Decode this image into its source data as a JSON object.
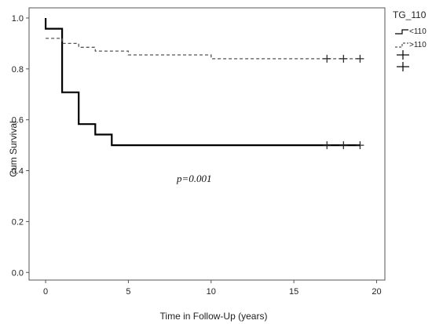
{
  "chart_data": {
    "type": "line",
    "subtype": "kaplan-meier",
    "title": "",
    "xlabel": "Time in Follow-Up (years)",
    "ylabel": "Cum Survival",
    "xlim": [
      -1,
      20.5
    ],
    "ylim": [
      -0.03,
      1.04
    ],
    "x_ticks": [
      0,
      5,
      10,
      15,
      20
    ],
    "y_ticks": [
      0.0,
      0.2,
      0.4,
      0.6,
      0.8,
      1.0
    ],
    "x_tick_labels": [
      "0",
      "5",
      "10",
      "15",
      "20"
    ],
    "y_tick_labels": [
      "0.0",
      "0.2",
      "0.4",
      "0.6",
      "0.8",
      "1.0"
    ],
    "grid": false,
    "legend": {
      "title": "TG_110",
      "position": "top-right",
      "entries": [
        "<110",
        ">110"
      ]
    },
    "annotation": "p=0.001",
    "series": [
      {
        "name": "<110",
        "style": "solid",
        "color": "#000000",
        "steps": [
          [
            0,
            1.0
          ],
          [
            0,
            0.958
          ],
          [
            1,
            0.958
          ],
          [
            1,
            0.708
          ],
          [
            2,
            0.708
          ],
          [
            2,
            0.583
          ],
          [
            3,
            0.583
          ],
          [
            3,
            0.542
          ],
          [
            4,
            0.542
          ],
          [
            4,
            0.5
          ],
          [
            19,
            0.5
          ]
        ],
        "censored": [
          [
            17,
            0.5
          ],
          [
            18,
            0.5
          ],
          [
            19,
            0.5
          ]
        ]
      },
      {
        "name": ">110",
        "style": "dashed",
        "color": "#555555",
        "steps": [
          [
            0,
            0.92
          ],
          [
            1,
            0.92
          ],
          [
            1,
            0.9
          ],
          [
            2,
            0.9
          ],
          [
            2,
            0.885
          ],
          [
            3,
            0.885
          ],
          [
            3,
            0.87
          ],
          [
            5,
            0.87
          ],
          [
            5,
            0.855
          ],
          [
            10,
            0.855
          ],
          [
            10,
            0.84
          ],
          [
            19,
            0.84
          ]
        ],
        "censored": [
          [
            17,
            0.84
          ],
          [
            18,
            0.84
          ],
          [
            19,
            0.84
          ]
        ]
      }
    ]
  }
}
